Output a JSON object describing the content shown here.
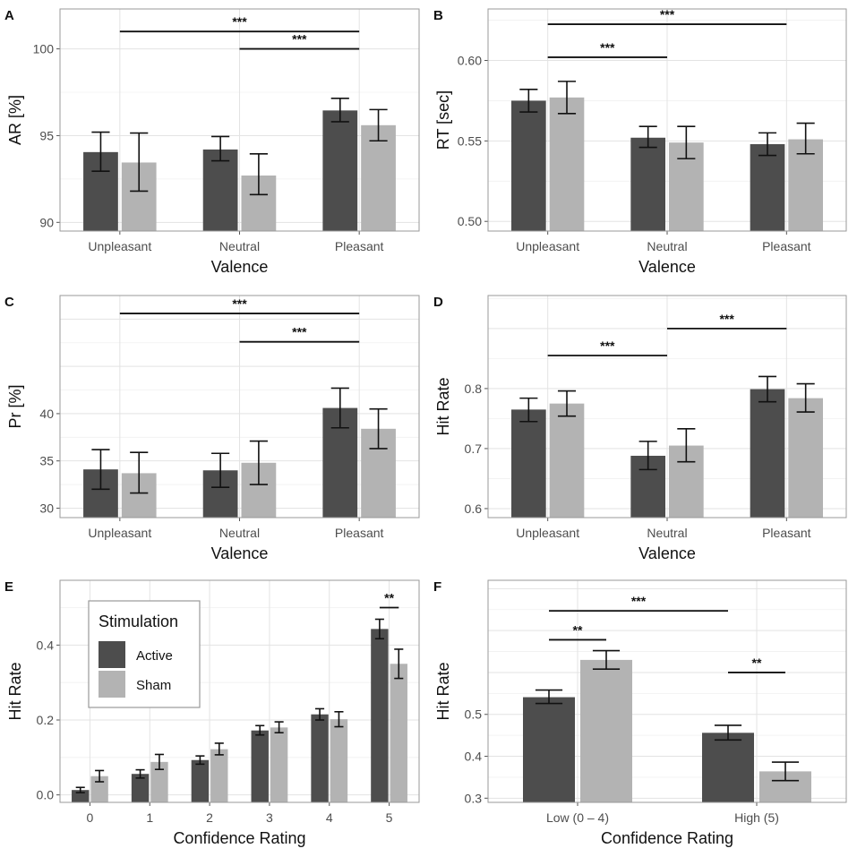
{
  "colors": {
    "active": "#4d4d4d",
    "sham": "#b3b3b3",
    "grid_major": "#e3e3e3",
    "grid_minor": "#f0f0f0",
    "frame": "#9a9a9a"
  },
  "legend": {
    "title": "Stimulation",
    "entries": [
      "Active",
      "Sham"
    ]
  },
  "chart_data": [
    {
      "id": "A",
      "letter": "A",
      "type": "bar",
      "xlabel": "Valence",
      "ylabel": "AR [%]",
      "categories": [
        "Unpleasant",
        "Neutral",
        "Pleasant"
      ],
      "ylim": [
        89.5,
        102.3
      ],
      "yticks": [
        90,
        95,
        100
      ],
      "series": [
        {
          "name": "Active",
          "values": [
            94.05,
            94.2,
            96.45
          ],
          "err_low": [
            92.95,
            93.55,
            95.8
          ],
          "err_high": [
            95.2,
            94.95,
            97.15
          ]
        },
        {
          "name": "Sham",
          "values": [
            93.45,
            92.7,
            95.6
          ],
          "err_low": [
            91.8,
            91.6,
            94.7
          ],
          "err_high": [
            95.15,
            93.95,
            96.5
          ]
        }
      ],
      "annotations": [
        {
          "from": 0,
          "to": 2,
          "label": "***",
          "level": 101.0
        },
        {
          "from": 1,
          "to": 2,
          "label": "***",
          "level": 100.0
        }
      ]
    },
    {
      "id": "B",
      "letter": "B",
      "type": "bar",
      "xlabel": "Valence",
      "ylabel": "RT [sec]",
      "categories": [
        "Unpleasant",
        "Neutral",
        "Pleasant"
      ],
      "ylim": [
        0.494,
        0.632
      ],
      "yticks": [
        0.5,
        0.55,
        0.6
      ],
      "series": [
        {
          "name": "Active",
          "values": [
            0.575,
            0.552,
            0.548
          ],
          "err_low": [
            0.568,
            0.546,
            0.541
          ],
          "err_high": [
            0.582,
            0.559,
            0.555
          ]
        },
        {
          "name": "Sham",
          "values": [
            0.577,
            0.549,
            0.551
          ],
          "err_low": [
            0.567,
            0.539,
            0.542
          ],
          "err_high": [
            0.587,
            0.559,
            0.561
          ]
        }
      ],
      "annotations": [
        {
          "from": 0,
          "to": 2,
          "label": "***",
          "level": 0.6225
        },
        {
          "from": 0,
          "to": 1,
          "label": "***",
          "level": 0.602
        }
      ]
    },
    {
      "id": "C",
      "letter": "C",
      "type": "bar",
      "xlabel": "Valence",
      "ylabel": "Pr [%]",
      "categories": [
        "Unpleasant",
        "Neutral",
        "Pleasant"
      ],
      "ylim": [
        29.0,
        52.5
      ],
      "yticks": [
        30,
        35,
        40
      ],
      "series": [
        {
          "name": "Active",
          "values": [
            34.1,
            34.0,
            40.6
          ],
          "err_low": [
            32.0,
            32.2,
            38.5
          ],
          "err_high": [
            36.2,
            35.8,
            42.7
          ]
        },
        {
          "name": "Sham",
          "values": [
            33.7,
            34.8,
            38.4
          ],
          "err_low": [
            31.6,
            32.5,
            36.3
          ],
          "err_high": [
            35.9,
            37.1,
            40.5
          ]
        }
      ],
      "annotations": [
        {
          "from": 0,
          "to": 2,
          "label": "***",
          "level": 50.6
        },
        {
          "from": 1,
          "to": 2,
          "label": "***",
          "level": 47.6
        }
      ]
    },
    {
      "id": "D",
      "letter": "D",
      "type": "bar",
      "xlabel": "Valence",
      "ylabel": "Hit Rate",
      "categories": [
        "Unpleasant",
        "Neutral",
        "Pleasant"
      ],
      "ylim": [
        0.585,
        0.955
      ],
      "yticks": [
        0.6,
        0.7,
        0.8
      ],
      "series": [
        {
          "name": "Active",
          "values": [
            0.765,
            0.688,
            0.799
          ],
          "err_low": [
            0.745,
            0.665,
            0.778
          ],
          "err_high": [
            0.784,
            0.712,
            0.82
          ]
        },
        {
          "name": "Sham",
          "values": [
            0.775,
            0.705,
            0.784
          ],
          "err_low": [
            0.754,
            0.678,
            0.761
          ],
          "err_high": [
            0.796,
            0.733,
            0.808
          ]
        }
      ],
      "annotations": [
        {
          "from": 0,
          "to": 1,
          "label": "***",
          "level": 0.855
        },
        {
          "from": 1,
          "to": 2,
          "label": "***",
          "level": 0.9
        }
      ]
    },
    {
      "id": "E",
      "letter": "E",
      "type": "bar",
      "xlabel": "Confidence Rating",
      "ylabel": "Hit Rate",
      "categories": [
        "0",
        "1",
        "2",
        "3",
        "4",
        "5"
      ],
      "ylim": [
        -0.02,
        0.573
      ],
      "yticks": [
        0.0,
        0.2,
        0.4
      ],
      "series": [
        {
          "name": "Active",
          "values": [
            0.013,
            0.056,
            0.093,
            0.172,
            0.215,
            0.443
          ],
          "err_low": [
            0.006,
            0.045,
            0.082,
            0.16,
            0.2,
            0.417
          ],
          "err_high": [
            0.02,
            0.067,
            0.104,
            0.185,
            0.23,
            0.469
          ]
        },
        {
          "name": "Sham",
          "values": [
            0.05,
            0.088,
            0.122,
            0.18,
            0.202,
            0.35
          ],
          "err_low": [
            0.035,
            0.068,
            0.107,
            0.166,
            0.182,
            0.311
          ],
          "err_high": [
            0.065,
            0.108,
            0.138,
            0.195,
            0.222,
            0.389
          ]
        }
      ],
      "annotations": [
        {
          "from_x": [
            5,
            0
          ],
          "to_x": [
            5,
            1
          ],
          "label": "**",
          "level": 0.5
        }
      ]
    },
    {
      "id": "F",
      "letter": "F",
      "type": "bar",
      "xlabel": "Confidence Rating",
      "ylabel": "Hit Rate",
      "categories": [
        "Low (0 – 4)",
        "High (5)"
      ],
      "ylim": [
        0.29,
        0.82
      ],
      "yticks": [
        0.3,
        0.4,
        0.5
      ],
      "series": [
        {
          "name": "Active",
          "values": [
            0.541,
            0.456
          ],
          "err_low": [
            0.526,
            0.439
          ],
          "err_high": [
            0.558,
            0.474
          ]
        },
        {
          "name": "Sham",
          "values": [
            0.63,
            0.364
          ],
          "err_low": [
            0.608,
            0.342
          ],
          "err_high": [
            0.652,
            0.386
          ]
        }
      ],
      "annotations": [
        {
          "from_x": [
            0,
            0
          ],
          "to_x": [
            1,
            0
          ],
          "label": "***",
          "level": 0.747
        },
        {
          "from_x": [
            0,
            0
          ],
          "to_x": [
            0,
            1
          ],
          "label": "**",
          "level": 0.678
        },
        {
          "from_x": [
            1,
            0
          ],
          "to_x": [
            1,
            1
          ],
          "label": "**",
          "level": 0.6
        }
      ]
    }
  ]
}
